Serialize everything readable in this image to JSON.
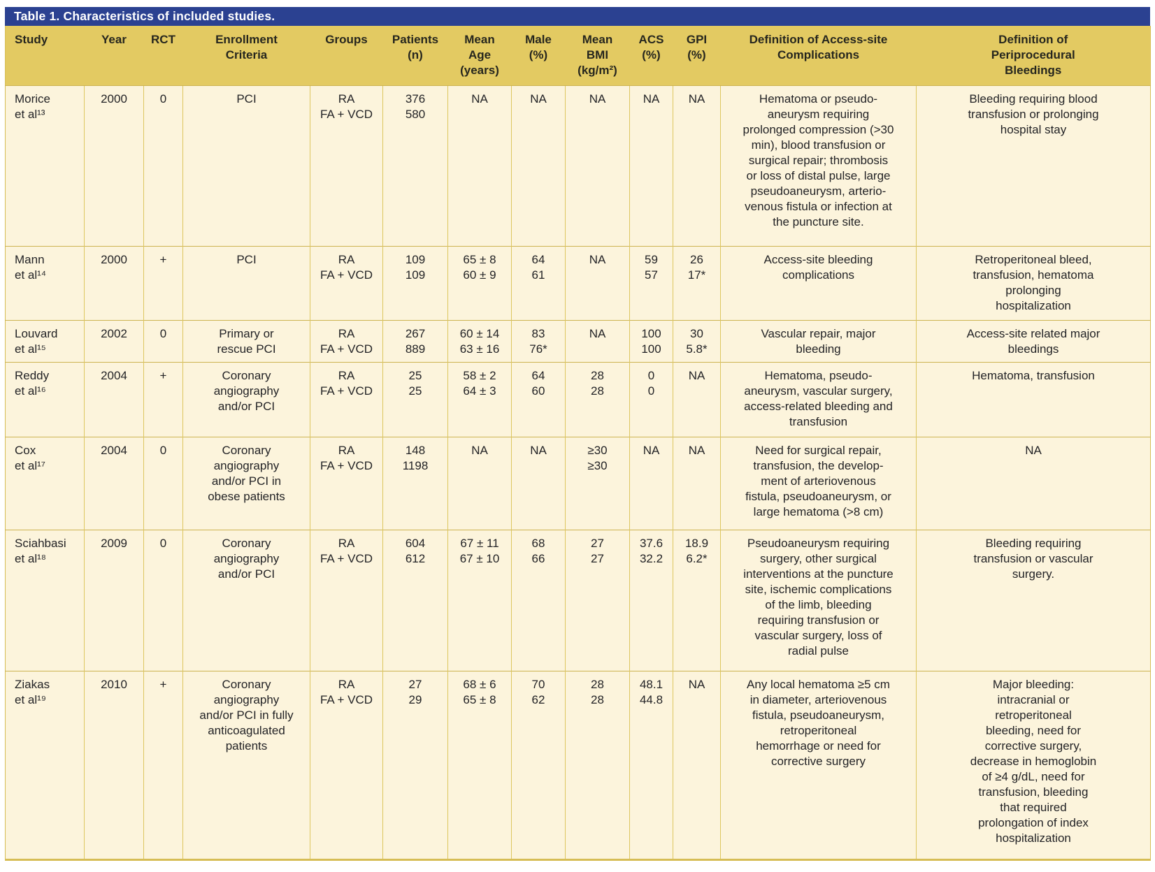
{
  "title": "Table 1. Characteristics of included studies.",
  "colors": {
    "title_bar_bg": "#2b4191",
    "title_bar_text": "#ffffff",
    "header_bg": "#e3ca62",
    "body_bg": "#fcf4dc",
    "border": "#d6bd55"
  },
  "table": {
    "columns": [
      {
        "key": "study",
        "label": "Study"
      },
      {
        "key": "year",
        "label": "Year"
      },
      {
        "key": "rct",
        "label": "RCT"
      },
      {
        "key": "enrollment",
        "label": "Enrollment\nCriteria"
      },
      {
        "key": "groups",
        "label": "Groups"
      },
      {
        "key": "patients",
        "label": "Patients\n(n)"
      },
      {
        "key": "mean_age",
        "label": "Mean\nAge\n(years)"
      },
      {
        "key": "male",
        "label": "Male\n(%)"
      },
      {
        "key": "mean_bmi",
        "label": "Mean\nBMI\n(kg/m²)"
      },
      {
        "key": "acs",
        "label": "ACS\n(%)"
      },
      {
        "key": "gpi",
        "label": "GPI\n(%)"
      },
      {
        "key": "def_access",
        "label": "Definition of Access-site\nComplications"
      },
      {
        "key": "def_bleed",
        "label": "Definition of\nPeriprocedural\nBleedings"
      }
    ],
    "rows": [
      {
        "study": "Morice\net al¹³",
        "year": "2000",
        "rct": "0",
        "enrollment": "PCI",
        "groups": "RA\nFA + VCD",
        "patients": "376\n580",
        "mean_age": "NA",
        "male": "NA",
        "mean_bmi": "NA",
        "acs": "NA",
        "gpi": "NA",
        "def_access": "Hematoma or pseudo-\naneurysm requiring\nprolonged compression (>30\nmin), blood transfusion or\nsurgical repair; thrombosis\nor loss of distal pulse, large\npseudoaneurysm, arterio-\nvenous fistula or infection at\nthe puncture site.",
        "def_bleed": "Bleeding requiring blood\ntransfusion or prolonging\nhospital stay"
      },
      {
        "study": "Mann\net al¹⁴",
        "year": "2000",
        "rct": "+",
        "enrollment": "PCI",
        "groups": "RA\nFA + VCD",
        "patients": "109\n109",
        "mean_age": "65 ± 8\n60 ± 9",
        "male": "64\n61",
        "mean_bmi": "NA",
        "acs": "59\n57",
        "gpi": "26\n17*",
        "def_access": "Access-site bleeding\ncomplications",
        "def_bleed": "Retroperitoneal bleed,\ntransfusion, hematoma\nprolonging\nhospitalization"
      },
      {
        "study": "Louvard\net al¹⁵",
        "year": "2002",
        "rct": "0",
        "enrollment": "Primary or\nrescue PCI",
        "groups": "RA\nFA + VCD",
        "patients": "267\n889",
        "mean_age": "60 ± 14\n63 ± 16",
        "male": "83\n76*",
        "mean_bmi": "NA",
        "acs": "100\n100",
        "gpi": "30\n5.8*",
        "def_access": "Vascular repair, major\nbleeding",
        "def_bleed": "Access-site related major\nbleedings"
      },
      {
        "study": "Reddy\net al¹⁶",
        "year": "2004",
        "rct": "+",
        "enrollment": "Coronary\nangiography\nand/or PCI",
        "groups": "RA\nFA + VCD",
        "patients": "25\n25",
        "mean_age": "58 ± 2\n64 ± 3",
        "male": "64\n60",
        "mean_bmi": "28\n28",
        "acs": "0\n0",
        "gpi": "NA",
        "def_access": "Hematoma, pseudo-\naneurysm, vascular surgery,\naccess-related bleeding and\ntransfusion",
        "def_bleed": "Hematoma, transfusion"
      },
      {
        "study": "Cox\net al¹⁷",
        "year": "2004",
        "rct": "0",
        "enrollment": "Coronary\nangiography\nand/or PCI in\nobese patients",
        "groups": "RA\nFA + VCD",
        "patients": "148\n1198",
        "mean_age": "NA",
        "male": "NA",
        "mean_bmi": "≥30\n≥30",
        "acs": "NA",
        "gpi": "NA",
        "def_access": "Need for surgical repair,\ntransfusion, the develop-\nment of arteriovenous\nfistula, pseudoaneurysm, or\nlarge hematoma (>8 cm)",
        "def_bleed": "NA"
      },
      {
        "study": "Sciahbasi\net al¹⁸",
        "year": "2009",
        "rct": "0",
        "enrollment": "Coronary\nangiography\nand/or PCI",
        "groups": "RA\nFA + VCD",
        "patients": "604\n612",
        "mean_age": "67 ± 11\n67 ± 10",
        "male": "68\n66",
        "mean_bmi": "27\n27",
        "acs": "37.6\n32.2",
        "gpi": "18.9\n6.2*",
        "def_access": "Pseudoaneurysm requiring\nsurgery, other surgical\ninterventions at the puncture\nsite, ischemic complications\nof the limb, bleeding\nrequiring transfusion or\nvascular surgery, loss of\nradial pulse",
        "def_bleed": "Bleeding requiring\ntransfusion or vascular\nsurgery."
      },
      {
        "study": "Ziakas\net al¹⁹",
        "year": "2010",
        "rct": "+",
        "enrollment": "Coronary\nangiography\nand/or PCI in fully\nanticoagulated\npatients",
        "groups": "RA\nFA + VCD",
        "patients": "27\n29",
        "mean_age": "68 ± 6\n65 ± 8",
        "male": "70\n62",
        "mean_bmi": "28\n28",
        "acs": "48.1\n44.8",
        "gpi": "NA",
        "def_access": "Any local hematoma ≥5 cm\nin diameter, arteriovenous\nfistula, pseudoaneurysm,\nretroperitoneal\nhemorrhage or need for\ncorrective surgery",
        "def_bleed": "Major bleeding:\nintracranial or\nretroperitoneal\nbleeding, need for\ncorrective surgery,\ndecrease in hemoglobin\nof ≥4 g/dL, need for\ntransfusion, bleeding\nthat required\nprolongation of index\nhospitalization"
      }
    ]
  }
}
